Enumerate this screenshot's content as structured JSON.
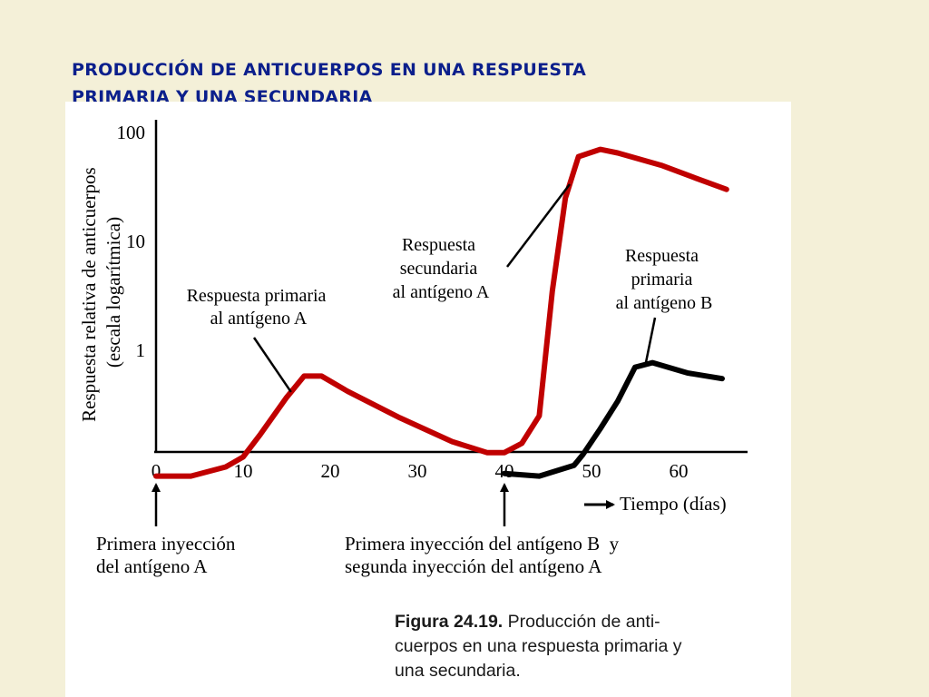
{
  "page": {
    "title_line1": "PRODUCCIÓN DE ANTICUERPOS EN UNA RESPUESTA",
    "title_line2": "PRIMARIA Y UNA SECUNDARIA"
  },
  "caption": {
    "label": "Figura 24.19.",
    "text_line1": "Producción de anti-",
    "text_line2": "cuerpos en una respuesta primaria y",
    "text_line3": "una secundaria."
  },
  "colors": {
    "antigen_a": "#c00000",
    "antigen_b": "#000000",
    "title": "#0b1f8c",
    "background": "#f4f0d8"
  },
  "chart_data": {
    "type": "line",
    "ylabel_line1": "Respuesta relativa de anticuerpos",
    "ylabel_line2": "(escala logarítmica)",
    "y_scale": "log",
    "y_ticks": [
      1,
      10,
      100
    ],
    "y_tick_labels": [
      "1",
      "10",
      "100"
    ],
    "ylim": [
      0.05,
      120
    ],
    "x_ticks": [
      0,
      10,
      20,
      30,
      40,
      50,
      60
    ],
    "x_tick_labels": [
      "0",
      "10",
      "20",
      "30",
      "40",
      "50",
      "60"
    ],
    "xlim": [
      0,
      68
    ],
    "x_axis_label": "Tiempo (días)",
    "grid": false,
    "series": [
      {
        "key": "antigen_a",
        "x": [
          0,
          4,
          8,
          10,
          12,
          15,
          17,
          19,
          22,
          28,
          34,
          38,
          40,
          42,
          44,
          45.5,
          47,
          48.5,
          51,
          53,
          58,
          62,
          65.5
        ],
        "y": [
          0.07,
          0.07,
          0.085,
          0.105,
          0.17,
          0.37,
          0.58,
          0.58,
          0.42,
          0.24,
          0.145,
          0.115,
          0.115,
          0.14,
          0.25,
          3.5,
          25,
          60,
          70,
          65,
          50,
          38,
          30
        ]
      },
      {
        "key": "antigen_b",
        "x": [
          40,
          44,
          48,
          49,
          51,
          53,
          55,
          57,
          61,
          65
        ],
        "y": [
          0.074,
          0.07,
          0.088,
          0.11,
          0.19,
          0.34,
          0.7,
          0.77,
          0.62,
          0.55
        ]
      }
    ],
    "annotations": [
      {
        "key": "primaria_a",
        "lines": [
          "Respuesta primaria",
          "al antígeno A"
        ],
        "series": "antigen_a",
        "at_x": 15.5
      },
      {
        "key": "secundaria_a",
        "lines": [
          "Respuesta",
          "secundaria",
          "al antígeno A"
        ],
        "series": "antigen_a",
        "at_x": 47.5
      },
      {
        "key": "primaria_b",
        "lines": [
          "Respuesta",
          "primaria",
          "al antígeno B"
        ],
        "series": "antigen_b",
        "at_x": 56.2
      }
    ],
    "markers": [
      {
        "key": "injection_1",
        "x": 0,
        "lines": [
          "Primera inyección",
          "del antígeno A"
        ]
      },
      {
        "key": "injection_2",
        "x": 40,
        "lines": [
          "Primera inyección del antígeno B  y",
          "segunda inyección del antígeno A"
        ]
      }
    ]
  }
}
